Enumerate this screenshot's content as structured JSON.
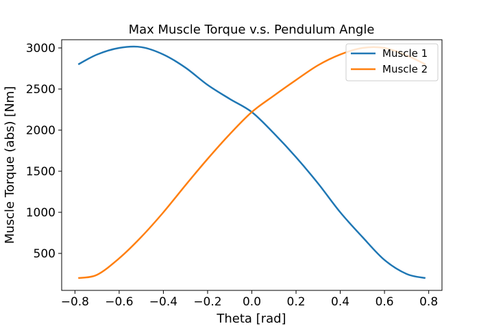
{
  "chart_data": {
    "type": "line",
    "title": "Max Muscle Torque v.s. Pendulum Angle",
    "xlabel": "Theta [rad]",
    "ylabel": "Muscle Torque (abs) [Nm]",
    "xlim": [
      -0.86,
      0.86
    ],
    "ylim": [
      50,
      3100
    ],
    "xticks": [
      -0.8,
      -0.6,
      -0.4,
      -0.2,
      0.0,
      0.2,
      0.4,
      0.6,
      0.8
    ],
    "xtick_labels": [
      "−0.8",
      "−0.6",
      "−0.4",
      "−0.2",
      "0.0",
      "0.2",
      "0.4",
      "0.6",
      "0.8"
    ],
    "yticks": [
      500,
      1000,
      1500,
      2000,
      2500,
      3000
    ],
    "ytick_labels": [
      "500",
      "1000",
      "1500",
      "2000",
      "2500",
      "3000"
    ],
    "grid": false,
    "legend": "top-right",
    "x": [
      -0.785,
      -0.7,
      -0.6,
      -0.5,
      -0.4,
      -0.3,
      -0.2,
      -0.1,
      0.0,
      0.1,
      0.2,
      0.3,
      0.4,
      0.5,
      0.6,
      0.7,
      0.785
    ],
    "series": [
      {
        "name": "Muscle 1",
        "color": "#1f77b4",
        "values": [
          2800,
          2920,
          3000,
          3010,
          2920,
          2760,
          2550,
          2380,
          2220,
          1960,
          1670,
          1350,
          1000,
          700,
          420,
          250,
          200
        ]
      },
      {
        "name": "Muscle 2",
        "color": "#ff7f0e",
        "values": [
          200,
          240,
          440,
          700,
          1000,
          1330,
          1650,
          1950,
          2220,
          2420,
          2610,
          2790,
          2920,
          3000,
          3000,
          2910,
          2800
        ]
      }
    ]
  }
}
